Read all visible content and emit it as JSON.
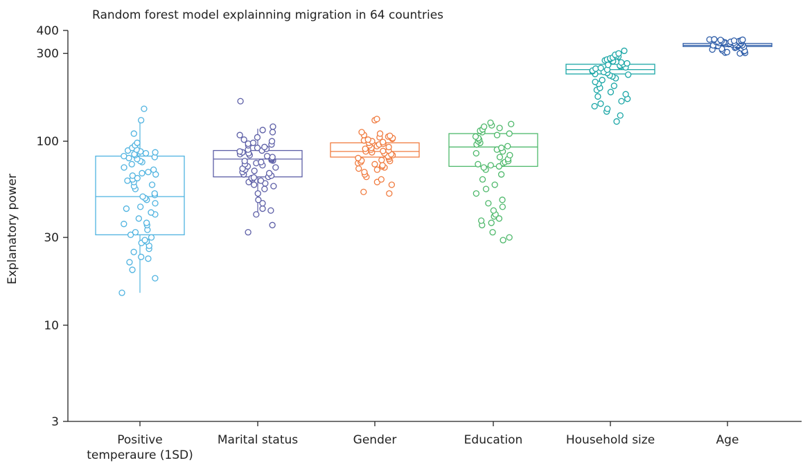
{
  "chart_data": {
    "type": "box",
    "title": "Random forest model explainning migration in 64 countries",
    "ylabel": "Explanatory power",
    "xlabel": "",
    "yscale": "log",
    "ylim": [
      3,
      400
    ],
    "yticks": [
      3,
      10,
      30,
      100,
      300,
      400
    ],
    "categories": [
      "Positive temperaure (1SD)",
      "Marital status",
      "Gender",
      "Education",
      "Household size",
      "Age"
    ],
    "category_lines": [
      [
        "Positive",
        "temperaure (1SD)"
      ],
      [
        "Marital status"
      ],
      [
        "Gender"
      ],
      [
        "Education"
      ],
      [
        "Household size"
      ],
      [
        "Age"
      ]
    ],
    "series": [
      {
        "color": "#4fb3e0",
        "box": {
          "whisker_low": 15,
          "q1": 31,
          "median": 50,
          "q3": 83,
          "whisker_high": 135
        },
        "points": [
          15,
          18,
          20,
          22,
          23,
          23.5,
          25,
          26,
          27,
          28,
          28.5,
          29,
          30,
          31,
          32,
          33,
          35,
          35.5,
          36,
          38,
          40,
          41,
          43,
          44,
          46,
          48,
          49,
          50,
          51,
          52,
          55,
          57,
          58,
          60,
          61,
          62,
          63,
          65,
          66,
          67,
          68,
          70,
          72,
          75,
          77,
          78,
          80,
          81,
          82,
          83,
          84,
          85,
          86,
          87,
          88,
          89,
          90,
          92,
          95,
          98,
          110,
          130,
          150
        ]
      },
      {
        "color": "#5c5ea6",
        "box": {
          "whisker_low": 40,
          "q1": 64,
          "median": 80,
          "q3": 89,
          "whisker_high": 117
        },
        "points": [
          32,
          35,
          40,
          42,
          43,
          46,
          48,
          52,
          55,
          57,
          58,
          59,
          60,
          61,
          62,
          63,
          63.5,
          64,
          65,
          66,
          67,
          68,
          69,
          70,
          71,
          72,
          73,
          74,
          75,
          76,
          77,
          78,
          78.5,
          79,
          80,
          81,
          82,
          83,
          84,
          85,
          86,
          87,
          88,
          89,
          90,
          91,
          92,
          93,
          95,
          96,
          97,
          98,
          100,
          102,
          105,
          108,
          112,
          115,
          120,
          165
        ]
      },
      {
        "color": "#f07b3f",
        "box": {
          "whisker_low": 82,
          "q1": 82,
          "median": 88,
          "q3": 98,
          "whisker_high": 98
        },
        "points": [
          52,
          53,
          58,
          60,
          62,
          64,
          66,
          68,
          70,
          71,
          72,
          73,
          74,
          75,
          76,
          77,
          78,
          78.5,
          79,
          80,
          81,
          82,
          83,
          84,
          85,
          86,
          87,
          88,
          88.5,
          89,
          90,
          91,
          92,
          93,
          94,
          95,
          96,
          97,
          98,
          99,
          100,
          101,
          102,
          103,
          104,
          105,
          106,
          107,
          108,
          110,
          112,
          130,
          132
        ]
      },
      {
        "color": "#4db86a",
        "box": {
          "whisker_low": 73,
          "q1": 73,
          "median": 93,
          "q3": 110,
          "whisker_high": 110
        },
        "points": [
          29,
          30,
          32,
          35,
          36,
          37,
          38,
          39,
          40,
          42,
          44,
          46,
          48,
          52,
          55,
          58,
          62,
          66,
          70,
          72,
          73,
          74,
          75,
          76,
          77,
          78,
          80,
          82,
          84,
          86,
          88,
          90,
          92,
          94,
          96,
          98,
          100,
          102,
          104,
          106,
          108,
          110,
          112,
          114,
          116,
          118,
          120,
          122,
          124,
          126
        ]
      },
      {
        "color": "#1aa6a6",
        "box": {
          "whisker_low": 232,
          "q1": 232,
          "median": 245,
          "q3": 262,
          "whisker_high": 262
        },
        "points": [
          128,
          138,
          145,
          150,
          155,
          160,
          165,
          170,
          175,
          180,
          185,
          190,
          195,
          200,
          205,
          210,
          215,
          220,
          225,
          228,
          230,
          232,
          235,
          238,
          240,
          242,
          245,
          248,
          250,
          252,
          255,
          258,
          260,
          262,
          265,
          268,
          270,
          272,
          275,
          278,
          280,
          282,
          285,
          288,
          290,
          295,
          300,
          310
        ]
      },
      {
        "color": "#2e5da8",
        "box": {
          "whisker_low": 327,
          "q1": 327,
          "median": 332,
          "q3": 340,
          "whisker_high": 340
        },
        "points": [
          300,
          302,
          303,
          305,
          308,
          310,
          312,
          315,
          318,
          320,
          322,
          324,
          326,
          328,
          329,
          330,
          331,
          332,
          333,
          334,
          335,
          336,
          337,
          338,
          339,
          340,
          341,
          342,
          343,
          344,
          345,
          346,
          347,
          348,
          349,
          350,
          351,
          352,
          353,
          354,
          355,
          356,
          357,
          358
        ]
      }
    ]
  }
}
